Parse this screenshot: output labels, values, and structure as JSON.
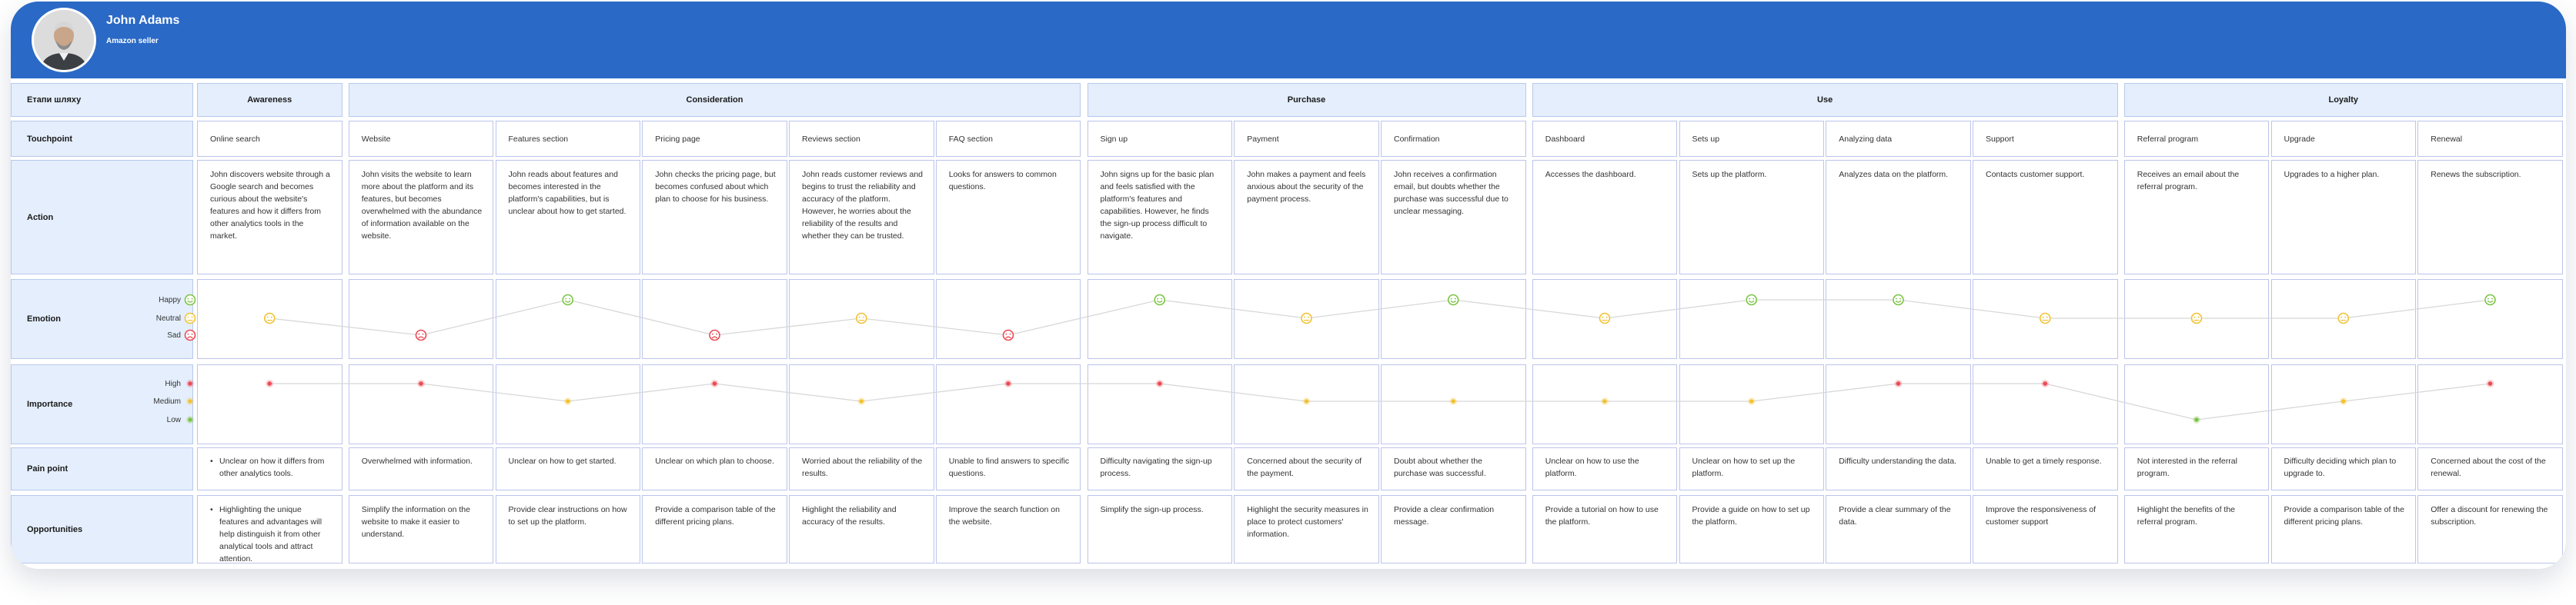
{
  "profile": {
    "name": "John Adams",
    "role": "Amazon seller"
  },
  "row_labels": {
    "stage": "Етапи шляху",
    "touchpoint": "Touchpoint",
    "action": "Action",
    "emotion": "Emotion",
    "importance": "Importance",
    "pain": "Pain point",
    "opportunities": "Opportunities"
  },
  "emotion_legend": [
    "Happy",
    "Neutral",
    "Sad"
  ],
  "importance_legend": [
    "High",
    "Medium",
    "Low"
  ],
  "stages": [
    {
      "name": "Awareness",
      "span": 1
    },
    {
      "name": "Consideration",
      "span": 5
    },
    {
      "name": "Purchase",
      "span": 3
    },
    {
      "name": "Use",
      "span": 4
    },
    {
      "name": "Loyalty",
      "span": 3
    }
  ],
  "columns": [
    {
      "touchpoint": "Online search",
      "action": "John discovers website through a Google search and becomes curious about the website's features and how it differs from other analytics tools in the market.",
      "emotion": "neutral",
      "importance": "high",
      "pain": "Unclear on how it differs from other analytics tools.",
      "opportunity": "Highlighting the unique features and advantages will help distinguish it from other analytical tools and attract attention."
    },
    {
      "touchpoint": "Website",
      "action": "John visits the website to learn more about the platform and its features, but becomes overwhelmed with the abundance of information available on the website.",
      "emotion": "sad",
      "importance": "high",
      "pain": "Overwhelmed with information.",
      "opportunity": "Simplify the information on the website to make it easier to understand."
    },
    {
      "touchpoint": "Features section",
      "action": "John reads about features and becomes interested in the platform's capabilities, but is unclear about how to get started.",
      "emotion": "happy",
      "importance": "medium",
      "pain": "Unclear on how to get started.",
      "opportunity": "Provide clear instructions on how to set up the platform."
    },
    {
      "touchpoint": "Pricing page",
      "action": "John checks the pricing page, but becomes confused about which plan to choose for his business.",
      "emotion": "sad",
      "importance": "high",
      "pain": "Unclear on which plan to choose.",
      "opportunity": "Provide a comparison table of the different pricing plans."
    },
    {
      "touchpoint": "Reviews section",
      "action": "John reads customer reviews and begins to trust the reliability and accuracy of the platform. However, he worries about the reliability of the results and whether they can be trusted.",
      "emotion": "neutral",
      "importance": "medium",
      "pain": "Worried about the reliability of the results.",
      "opportunity": "Highlight the reliability and accuracy of the results."
    },
    {
      "touchpoint": "FAQ section",
      "action": "Looks for answers to common questions.",
      "emotion": "sad",
      "importance": "high",
      "pain": "Unable to find answers to specific questions.",
      "opportunity": "Improve the search function on the website."
    },
    {
      "touchpoint": "Sign up",
      "action": "John signs up for the basic plan and feels satisfied with the platform's features and capabilities. However, he finds the sign-up process difficult to navigate.",
      "emotion": "happy",
      "importance": "high",
      "pain": "Difficulty navigating the sign-up process.",
      "opportunity": "Simplify the sign-up process."
    },
    {
      "touchpoint": "Payment",
      "action": "John makes a payment and feels anxious about the security of the payment process.",
      "emotion": "neutral",
      "importance": "medium",
      "pain": "Concerned about the security of the payment.",
      "opportunity": "Highlight the security measures in place to protect customers' information."
    },
    {
      "touchpoint": "Confirmation",
      "action": "John receives a confirmation email, but doubts whether the purchase was successful due to unclear messaging.",
      "emotion": "happy",
      "importance": "medium",
      "pain": "Doubt about whether the purchase was successful.",
      "opportunity": "Provide a clear confirmation message."
    },
    {
      "touchpoint": "Dashboard",
      "action": "Accesses the dashboard.",
      "emotion": "neutral",
      "importance": "medium",
      "pain": "Unclear on how to use the platform.",
      "opportunity": "Provide a tutorial on how to use the platform."
    },
    {
      "touchpoint": "Sets up",
      "action": "Sets up the platform.",
      "emotion": "happy",
      "importance": "medium",
      "pain": "Unclear on how to set up the platform.",
      "opportunity": "Provide a guide on how to set up the platform."
    },
    {
      "touchpoint": "Analyzing data",
      "action": "Analyzes data on the platform.",
      "emotion": "happy",
      "importance": "high",
      "pain": "Difficulty understanding the data.",
      "opportunity": "Provide a clear summary of the data."
    },
    {
      "touchpoint": "Support",
      "action": "Contacts customer support.",
      "emotion": "neutral",
      "importance": "high",
      "pain": "Unable to get a timely response.",
      "opportunity": "Improve the responsiveness of customer support"
    },
    {
      "touchpoint": "Referral program",
      "action": "Receives an email about the referral program.",
      "emotion": "neutral",
      "importance": "low",
      "pain": "Not interested in the referral program.",
      "opportunity": "Highlight the benefits of the referral program."
    },
    {
      "touchpoint": "Upgrade",
      "action": "Upgrades to a higher plan.",
      "emotion": "neutral",
      "importance": "medium",
      "pain": "Difficulty deciding which plan to upgrade to.",
      "opportunity": "Provide a comparison table of the different pricing plans."
    },
    {
      "touchpoint": "Renewal",
      "action": "Renews the subscription.",
      "emotion": "happy",
      "importance": "high",
      "pain": "Concerned about the cost of the renewal.",
      "opportunity": "Offer a discount for renewing the subscription."
    }
  ],
  "colors": {
    "header": "#2a69c6",
    "happy": "#7cc443",
    "neutral": "#f2c233",
    "sad": "#ec4b55",
    "high": "#ec4b55",
    "medium": "#f2c233",
    "low": "#7cc443"
  }
}
